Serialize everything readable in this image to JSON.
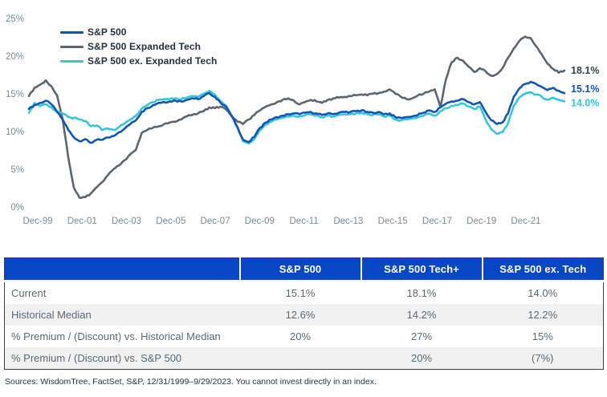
{
  "chart_data": {
    "type": "line",
    "title": "",
    "grid": false,
    "legend_position": "top-left",
    "x_axis": {
      "tick_labels": [
        "Dec-99",
        "Dec-01",
        "Dec-03",
        "Dec-05",
        "Dec-07",
        "Dec-09",
        "Dec-11",
        "Dec-13",
        "Dec-15",
        "Dec-17",
        "Dec-19",
        "Dec-21"
      ],
      "start": "Dec-99",
      "end": "Sep-23",
      "frequency": "quarterly"
    },
    "y_axis": {
      "tick_labels": [
        "0%",
        "5%",
        "10%",
        "15%",
        "20%",
        "25%"
      ],
      "tick_values": [
        0,
        5,
        10,
        15,
        20,
        25
      ],
      "min": 0,
      "max": 25,
      "unit": "%"
    },
    "series": [
      {
        "name": "S&P 500",
        "color": "#1156b5",
        "end_label": "15.1%",
        "end_label_color": "#1156b5",
        "values": [
          13.0,
          13.5,
          13.8,
          14.1,
          13.6,
          12.6,
          11.6,
          10.2,
          9.2,
          8.7,
          9.0,
          8.5,
          8.9,
          8.9,
          9.2,
          9.4,
          9.9,
          10.4,
          11.0,
          11.5,
          12.6,
          13.1,
          13.5,
          13.8,
          13.9,
          14.0,
          14.1,
          14.0,
          14.2,
          14.4,
          14.3,
          14.7,
          15.1,
          14.6,
          13.8,
          13.3,
          12.0,
          10.6,
          8.9,
          8.6,
          9.3,
          10.5,
          11.2,
          11.6,
          11.9,
          12.1,
          12.3,
          12.4,
          12.3,
          12.5,
          12.6,
          12.4,
          12.2,
          12.4,
          12.3,
          12.5,
          12.6,
          12.6,
          12.7,
          12.8,
          12.6,
          12.5,
          12.6,
          12.3,
          12.4,
          11.9,
          11.8,
          11.9,
          12.0,
          12.2,
          12.5,
          12.8,
          12.6,
          13.2,
          13.7,
          14.0,
          14.1,
          14.3,
          13.9,
          13.6,
          13.9,
          12.6,
          11.5,
          11.0,
          11.2,
          12.4,
          14.6,
          15.7,
          16.3,
          16.6,
          16.3,
          15.9,
          15.5,
          15.8,
          15.4,
          15.1
        ]
      },
      {
        "name": "S&P 500 Expanded Tech",
        "color": "#5b6670",
        "end_label": "18.1%",
        "end_label_color": "#39444e",
        "values": [
          14.7,
          15.8,
          16.2,
          16.8,
          16.0,
          14.8,
          11.6,
          6.5,
          2.5,
          1.2,
          1.3,
          1.8,
          2.6,
          3.3,
          4.2,
          5.0,
          5.5,
          6.2,
          7.0,
          7.6,
          9.8,
          10.2,
          10.5,
          10.7,
          11.0,
          11.2,
          11.3,
          11.6,
          12.0,
          12.2,
          12.4,
          12.7,
          13.2,
          13.1,
          13.3,
          12.9,
          12.0,
          11.3,
          11.0,
          11.6,
          12.2,
          12.8,
          13.3,
          13.6,
          13.9,
          14.2,
          14.4,
          14.1,
          13.6,
          13.9,
          14.2,
          14.0,
          13.8,
          14.2,
          14.4,
          14.5,
          14.6,
          14.7,
          14.8,
          14.9,
          14.8,
          15.0,
          15.1,
          15.3,
          15.6,
          15.0,
          14.6,
          14.3,
          14.4,
          14.8,
          15.0,
          15.3,
          15.6,
          13.3,
          17.0,
          19.2,
          19.8,
          19.4,
          18.6,
          17.9,
          18.4,
          18.0,
          17.4,
          17.6,
          18.4,
          19.8,
          21.0,
          22.0,
          22.6,
          22.4,
          21.3,
          20.2,
          19.0,
          18.3,
          17.8,
          18.1
        ]
      },
      {
        "name": "S&P 500 ex. Expanded Tech",
        "color": "#38c5d6",
        "end_label": "14.0%",
        "end_label_color": "#38c5d6",
        "values": [
          12.5,
          13.8,
          13.4,
          13.6,
          13.2,
          12.7,
          12.4,
          11.9,
          11.8,
          11.6,
          11.4,
          10.7,
          10.8,
          10.2,
          10.4,
          10.2,
          10.6,
          11.1,
          11.6,
          12.1,
          13.0,
          13.5,
          13.9,
          14.2,
          14.3,
          14.3,
          14.4,
          14.3,
          14.5,
          14.7,
          14.6,
          15.0,
          15.4,
          14.9,
          14.0,
          13.4,
          12.1,
          10.5,
          8.7,
          8.4,
          9.0,
          10.2,
          10.9,
          11.3,
          11.6,
          11.8,
          12.0,
          12.1,
          12.0,
          12.2,
          12.3,
          12.1,
          11.9,
          12.1,
          12.0,
          12.2,
          12.3,
          12.3,
          12.4,
          12.5,
          12.3,
          12.2,
          12.3,
          12.0,
          12.1,
          11.6,
          11.5,
          11.6,
          11.7,
          11.9,
          12.1,
          12.4,
          12.1,
          12.7,
          13.1,
          13.4,
          13.5,
          13.7,
          13.3,
          13.0,
          13.3,
          11.6,
          10.3,
          9.7,
          9.9,
          11.1,
          13.4,
          14.5,
          15.0,
          15.2,
          14.9,
          14.6,
          14.2,
          14.5,
          14.2,
          14.0
        ]
      }
    ]
  },
  "table": {
    "columns": [
      "",
      "S&P 500",
      "S&P 500 Tech+",
      "S&P 500 ex. Tech"
    ],
    "header_bg": "#0847c4",
    "rows": [
      {
        "label": "Current",
        "values": [
          "15.1%",
          "18.1%",
          "14.0%"
        ]
      },
      {
        "label": "Historical Median",
        "values": [
          "12.6%",
          "14.2%",
          "12.2%"
        ]
      },
      {
        "label": "% Premium / (Discount) vs. Historical Median",
        "values": [
          "20%",
          "27%",
          "15%"
        ]
      },
      {
        "label": "% Premium / (Discount) vs. S&P 500",
        "values": [
          "",
          "20%",
          "(7%)"
        ]
      }
    ]
  },
  "footer": {
    "source_note": "Sources: WisdomTree, FactSet, S&P, 12/31/1999–9/29/2023. You cannot invest directly in an index."
  }
}
